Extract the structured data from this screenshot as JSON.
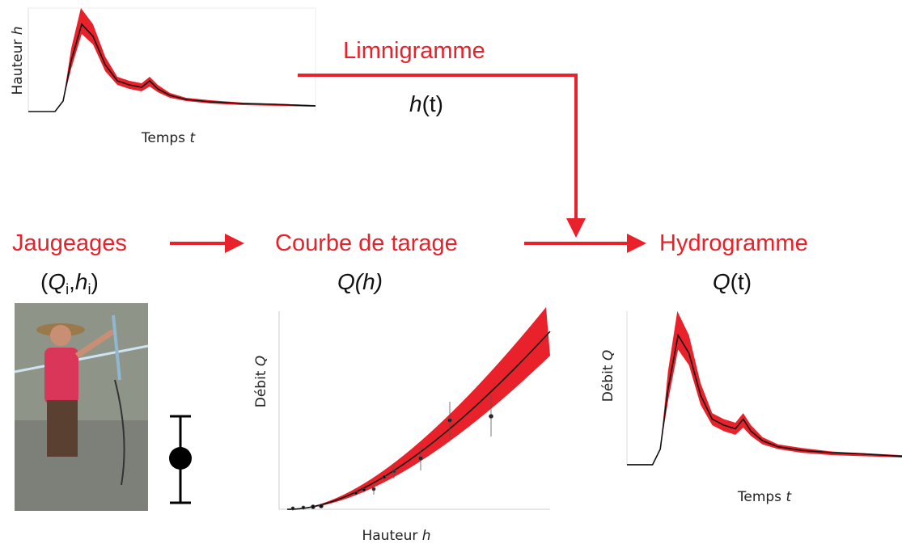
{
  "limnigramme": {
    "label": "Limnigramme",
    "formula": [
      "h",
      "(t)"
    ],
    "chart": {
      "y_label": [
        "Hauteur ",
        "h"
      ],
      "x_label": [
        "Temps ",
        "t"
      ]
    }
  },
  "jaugeages": {
    "label": "Jaugeages",
    "formula": [
      "(",
      "Q",
      "i",
      ",",
      "h",
      "i",
      ")"
    ]
  },
  "courbe": {
    "label": "Courbe de tarage",
    "formula": [
      "Q(h)"
    ],
    "chart": {
      "y_label": [
        "Débit ",
        "Q"
      ],
      "x_label": [
        "Hauteur ",
        "h"
      ]
    }
  },
  "hydrogramme": {
    "label": "Hydrogramme",
    "formula": [
      "Q",
      "(t)"
    ],
    "chart": {
      "y_label": [
        "Débit ",
        "Q"
      ],
      "x_label": [
        "Temps ",
        "t"
      ]
    }
  }
}
